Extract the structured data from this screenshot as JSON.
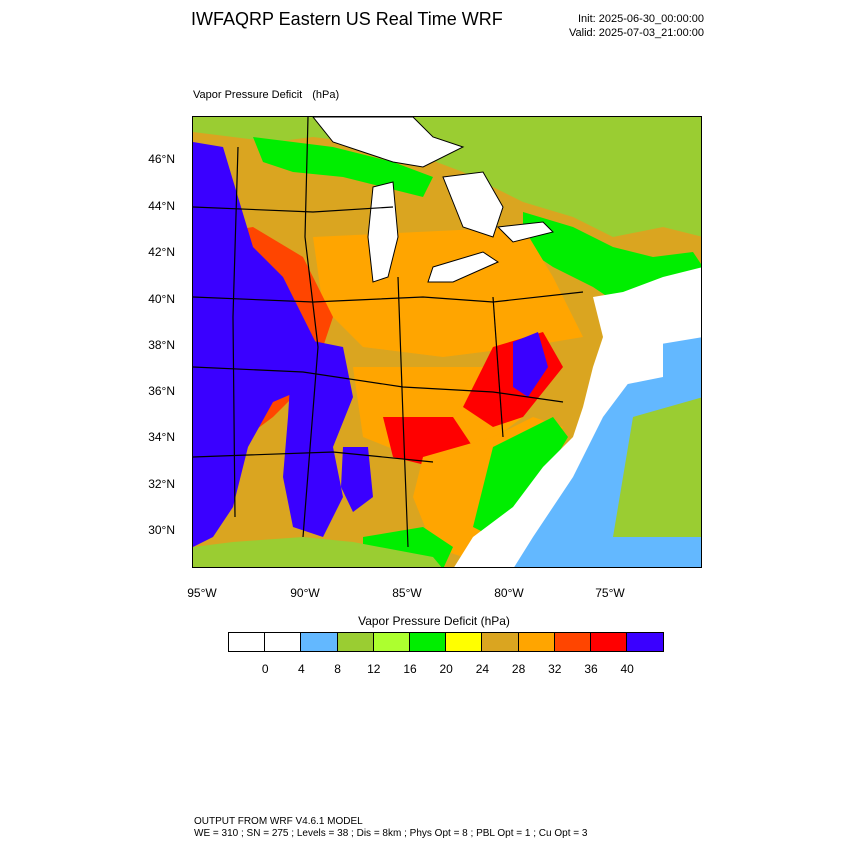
{
  "header": {
    "title": "IWFAQRP Eastern US Real Time WRF",
    "init": "Init: 2025-06-30_00:00:00",
    "valid": "Valid: 2025-07-03_21:00:00"
  },
  "plot": {
    "field_name": "Vapor Pressure Deficit",
    "field_unit": "(hPa)"
  },
  "map": {
    "lat_labels": [
      "46°N",
      "44°N",
      "42°N",
      "40°N",
      "38°N",
      "36°N",
      "34°N",
      "32°N",
      "30°N"
    ],
    "lon_labels": [
      "95°W",
      "90°W",
      "85°W",
      "80°W",
      "75°W"
    ]
  },
  "colorbar": {
    "title": "Vapor Pressure Deficit  (hPa)",
    "colors": [
      "#ffffff",
      "#ffffff",
      "#63b8ff",
      "#9acd32",
      "#adff2f",
      "#00ee00",
      "#ffff00",
      "#daa520",
      "#ffa500",
      "#ff4500",
      "#ff0000",
      "#3a00ff"
    ],
    "ticks": [
      "0",
      "4",
      "8",
      "12",
      "16",
      "20",
      "24",
      "28",
      "32",
      "36",
      "40"
    ]
  },
  "footer": {
    "line1": "OUTPUT FROM WRF V4.6.1 MODEL",
    "line2": "WE = 310 ; SN = 275 ; Levels = 38 ; Dis = 8km ; Phys Opt = 8 ; PBL Opt = 1 ; Cu Opt = 3"
  }
}
